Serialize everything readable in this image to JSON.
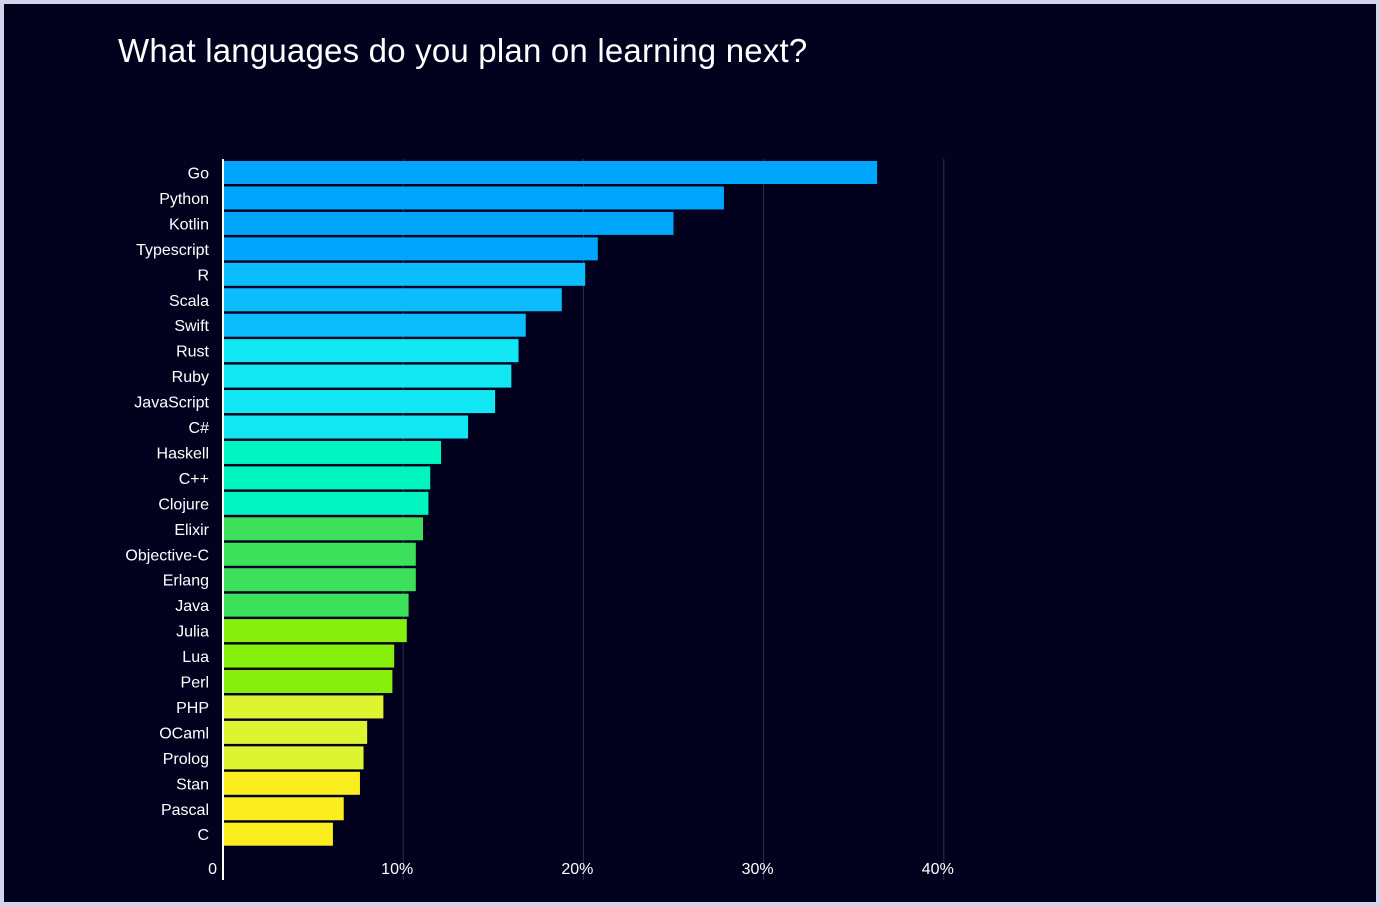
{
  "chart_data": {
    "type": "bar",
    "orientation": "horizontal",
    "title": "What languages do you plan on learning next?",
    "xlabel": "",
    "ylabel": "",
    "xlim": [
      0,
      40
    ],
    "grid": true,
    "categories": [
      "Go",
      "Python",
      "Kotlin",
      "Typescript",
      "R",
      "Scala",
      "Swift",
      "Rust",
      "Ruby",
      "JavaScript",
      "C#",
      "Haskell",
      "C++",
      "Clojure",
      "Elixir",
      "Objective-C",
      "Erlang",
      "Java",
      "Julia",
      "Lua",
      "Perl",
      "PHP",
      "OCaml",
      "Prolog",
      "Stan",
      "Pascal",
      "C"
    ],
    "values": [
      36.3,
      27.8,
      25.0,
      20.8,
      20.1,
      18.8,
      16.8,
      16.4,
      16.0,
      15.1,
      13.6,
      12.1,
      11.5,
      11.4,
      11.1,
      10.7,
      10.7,
      10.3,
      10.2,
      9.5,
      9.4,
      8.9,
      8.0,
      7.8,
      7.6,
      6.7,
      6.1
    ],
    "colors": [
      "#00a6fb",
      "#00a6fb",
      "#00a6fb",
      "#00a6fb",
      "#0bbdfc",
      "#0bbdfc",
      "#0bbdfc",
      "#12e8f4",
      "#12e8f4",
      "#12e8f4",
      "#12e8f4",
      "#00f5c1",
      "#00f5c1",
      "#00f5c1",
      "#3de05a",
      "#3de05a",
      "#3de05a",
      "#3de05a",
      "#86f00c",
      "#86f00c",
      "#86f00c",
      "#dcf530",
      "#dcf530",
      "#dcf530",
      "#fbee1f",
      "#fbee1f",
      "#fbee1f"
    ],
    "x_ticks": [
      {
        "value": 0,
        "label": "0"
      },
      {
        "value": 10,
        "label": "10%"
      },
      {
        "value": 20,
        "label": "20%"
      },
      {
        "value": 30,
        "label": "30%"
      },
      {
        "value": 40,
        "label": "40%"
      }
    ],
    "background_color": "#02021f",
    "grid_color": "#2e2f4d"
  }
}
